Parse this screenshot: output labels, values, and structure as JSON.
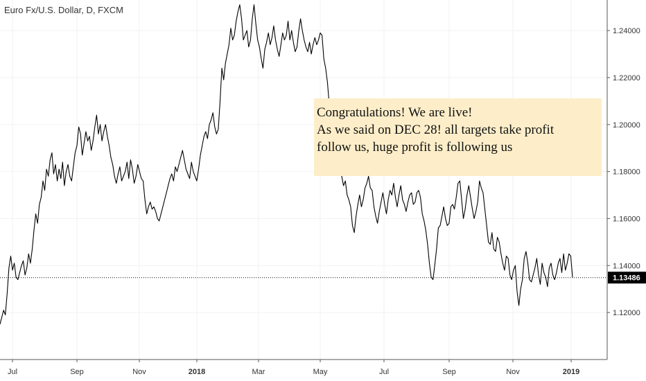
{
  "chart_data": {
    "type": "line",
    "title": "Euro Fx/U.S. Dollar, D, FXCM",
    "x_labels": [
      "Jul",
      "Sep",
      "Nov",
      "2018",
      "Mar",
      "May",
      "Jul",
      "Sep",
      "Nov",
      "2019"
    ],
    "x_labels_bold": [
      "2018",
      "2019"
    ],
    "y_ticks": [
      "1.12000",
      "1.14000",
      "1.16000",
      "1.18000",
      "1.20000",
      "1.22000",
      "1.24000"
    ],
    "y_tick_values": [
      1.12,
      1.14,
      1.16,
      1.18,
      1.2,
      1.22,
      1.24
    ],
    "ylim": [
      1.1,
      1.253
    ],
    "current_price": 1.13486,
    "current_price_label": "1.13486",
    "series": [
      {
        "values": [
          1.115,
          1.118,
          1.121,
          1.119,
          1.128,
          1.139,
          1.144,
          1.138,
          1.141,
          1.135,
          1.134,
          1.137,
          1.14,
          1.142,
          1.136,
          1.139,
          1.145,
          1.141,
          1.147,
          1.155,
          1.162,
          1.158,
          1.166,
          1.169,
          1.176,
          1.172,
          1.181,
          1.178,
          1.185,
          1.188,
          1.179,
          1.183,
          1.176,
          1.181,
          1.177,
          1.184,
          1.174,
          1.18,
          1.183,
          1.178,
          1.176,
          1.182,
          1.188,
          1.191,
          1.199,
          1.196,
          1.187,
          1.192,
          1.197,
          1.193,
          1.195,
          1.189,
          1.193,
          1.199,
          1.204,
          1.196,
          1.2,
          1.193,
          1.197,
          1.2,
          1.195,
          1.191,
          1.186,
          1.183,
          1.178,
          1.175,
          1.179,
          1.182,
          1.176,
          1.178,
          1.18,
          1.184,
          1.177,
          1.185,
          1.181,
          1.175,
          1.178,
          1.183,
          1.18,
          1.177,
          1.176,
          1.168,
          1.162,
          1.165,
          1.167,
          1.164,
          1.165,
          1.163,
          1.16,
          1.159,
          1.162,
          1.165,
          1.168,
          1.171,
          1.174,
          1.177,
          1.179,
          1.176,
          1.182,
          1.18,
          1.183,
          1.186,
          1.189,
          1.185,
          1.181,
          1.179,
          1.177,
          1.184,
          1.18,
          1.178,
          1.176,
          1.181,
          1.187,
          1.191,
          1.195,
          1.197,
          1.194,
          1.2,
          1.202,
          1.205,
          1.199,
          1.196,
          1.198,
          1.21,
          1.224,
          1.219,
          1.226,
          1.23,
          1.234,
          1.241,
          1.236,
          1.238,
          1.244,
          1.248,
          1.251,
          1.245,
          1.236,
          1.238,
          1.24,
          1.233,
          1.236,
          1.245,
          1.251,
          1.243,
          1.236,
          1.233,
          1.228,
          1.224,
          1.232,
          1.235,
          1.239,
          1.234,
          1.237,
          1.242,
          1.236,
          1.232,
          1.229,
          1.234,
          1.239,
          1.236,
          1.238,
          1.244,
          1.236,
          1.24,
          1.235,
          1.231,
          1.233,
          1.24,
          1.245,
          1.24,
          1.236,
          1.233,
          1.231,
          1.235,
          1.23,
          1.234,
          1.237,
          1.234,
          1.236,
          1.239,
          1.238,
          1.228,
          1.224,
          1.218,
          1.209,
          1.197,
          1.193,
          1.187,
          1.191,
          1.184,
          1.18,
          1.178,
          1.174,
          1.176,
          1.17,
          1.168,
          1.165,
          1.157,
          1.154,
          1.161,
          1.166,
          1.17,
          1.165,
          1.168,
          1.173,
          1.175,
          1.178,
          1.173,
          1.172,
          1.165,
          1.161,
          1.158,
          1.163,
          1.167,
          1.171,
          1.166,
          1.162,
          1.168,
          1.172,
          1.17,
          1.175,
          1.169,
          1.165,
          1.17,
          1.174,
          1.168,
          1.166,
          1.163,
          1.167,
          1.17,
          1.171,
          1.166,
          1.167,
          1.171,
          1.172,
          1.169,
          1.162,
          1.159,
          1.155,
          1.149,
          1.141,
          1.135,
          1.134,
          1.14,
          1.147,
          1.156,
          1.157,
          1.161,
          1.165,
          1.16,
          1.157,
          1.158,
          1.165,
          1.166,
          1.164,
          1.169,
          1.175,
          1.176,
          1.168,
          1.16,
          1.164,
          1.17,
          1.174,
          1.169,
          1.164,
          1.16,
          1.163,
          1.167,
          1.176,
          1.173,
          1.171,
          1.164,
          1.157,
          1.15,
          1.149,
          1.154,
          1.147,
          1.146,
          1.152,
          1.15,
          1.145,
          1.141,
          1.138,
          1.144,
          1.143,
          1.136,
          1.134,
          1.138,
          1.14,
          1.129,
          1.123,
          1.13,
          1.134,
          1.143,
          1.146,
          1.141,
          1.134,
          1.133,
          1.136,
          1.139,
          1.143,
          1.136,
          1.132,
          1.141,
          1.137,
          1.135,
          1.131,
          1.139,
          1.141,
          1.136,
          1.134,
          1.137,
          1.141,
          1.143,
          1.137,
          1.145,
          1.138,
          1.141,
          1.145,
          1.144,
          1.135
        ]
      }
    ],
    "annotation": {
      "lines": [
        "Congratulations! We are live!",
        "As we said on DEC 28! all targets take profit",
        "follow us, huge profit is following us"
      ],
      "bg_color": "#fdeec9"
    },
    "colors": {
      "line": "#000000",
      "price_label_bg": "#000000",
      "grid": "#f2f2f2",
      "axis_border": "#555555"
    }
  }
}
